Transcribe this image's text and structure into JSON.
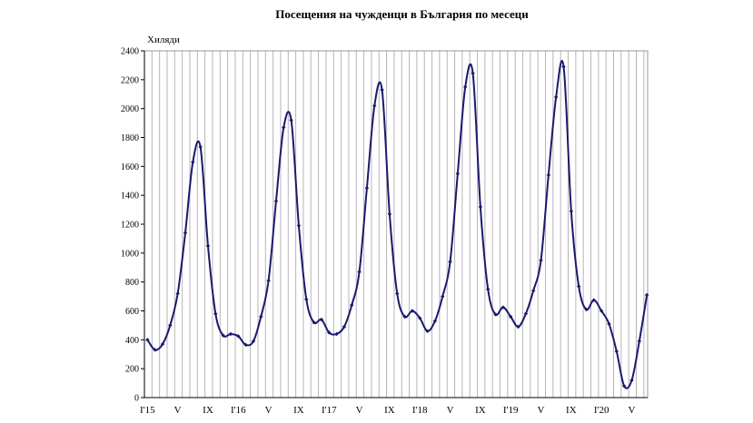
{
  "chart_data": {
    "type": "line",
    "title": "Посещения на чужденци в България по месеци",
    "ylabel": "Хиляди",
    "xlabel": "",
    "ylim": [
      0,
      2400
    ],
    "yticks": [
      0,
      200,
      400,
      600,
      800,
      1000,
      1200,
      1400,
      1600,
      1800,
      2000,
      2200,
      2400
    ],
    "x_tick_labels": [
      {
        "month": 1,
        "label": "I'15"
      },
      {
        "month": 5,
        "label": "V"
      },
      {
        "month": 9,
        "label": "IX"
      },
      {
        "month": 13,
        "label": "I'16"
      },
      {
        "month": 17,
        "label": "V"
      },
      {
        "month": 21,
        "label": "IX"
      },
      {
        "month": 25,
        "label": "I'17"
      },
      {
        "month": 29,
        "label": "V"
      },
      {
        "month": 33,
        "label": "IX"
      },
      {
        "month": 37,
        "label": "I'18"
      },
      {
        "month": 41,
        "label": "V"
      },
      {
        "month": 45,
        "label": "IX"
      },
      {
        "month": 49,
        "label": "I'19"
      },
      {
        "month": 53,
        "label": "V"
      },
      {
        "month": 57,
        "label": "IX"
      },
      {
        "month": 61,
        "label": "I'20"
      },
      {
        "month": 65,
        "label": "V"
      }
    ],
    "grid": "vertical",
    "color": "#1a1a6e",
    "series": [
      {
        "values": [
          400,
          330,
          370,
          500,
          720,
          1140,
          1630,
          1735,
          1050,
          580,
          430,
          440,
          425,
          365,
          390,
          560,
          810,
          1360,
          1870,
          1920,
          1190,
          680,
          520,
          540,
          450,
          440,
          490,
          640,
          870,
          1450,
          2020,
          2130,
          1270,
          720,
          560,
          600,
          550,
          460,
          530,
          700,
          940,
          1550,
          2150,
          2245,
          1320,
          750,
          575,
          625,
          560,
          490,
          580,
          740,
          950,
          1540,
          2080,
          2290,
          1290,
          770,
          610,
          675,
          600,
          510,
          320,
          80,
          120,
          390,
          710
        ]
      }
    ]
  }
}
